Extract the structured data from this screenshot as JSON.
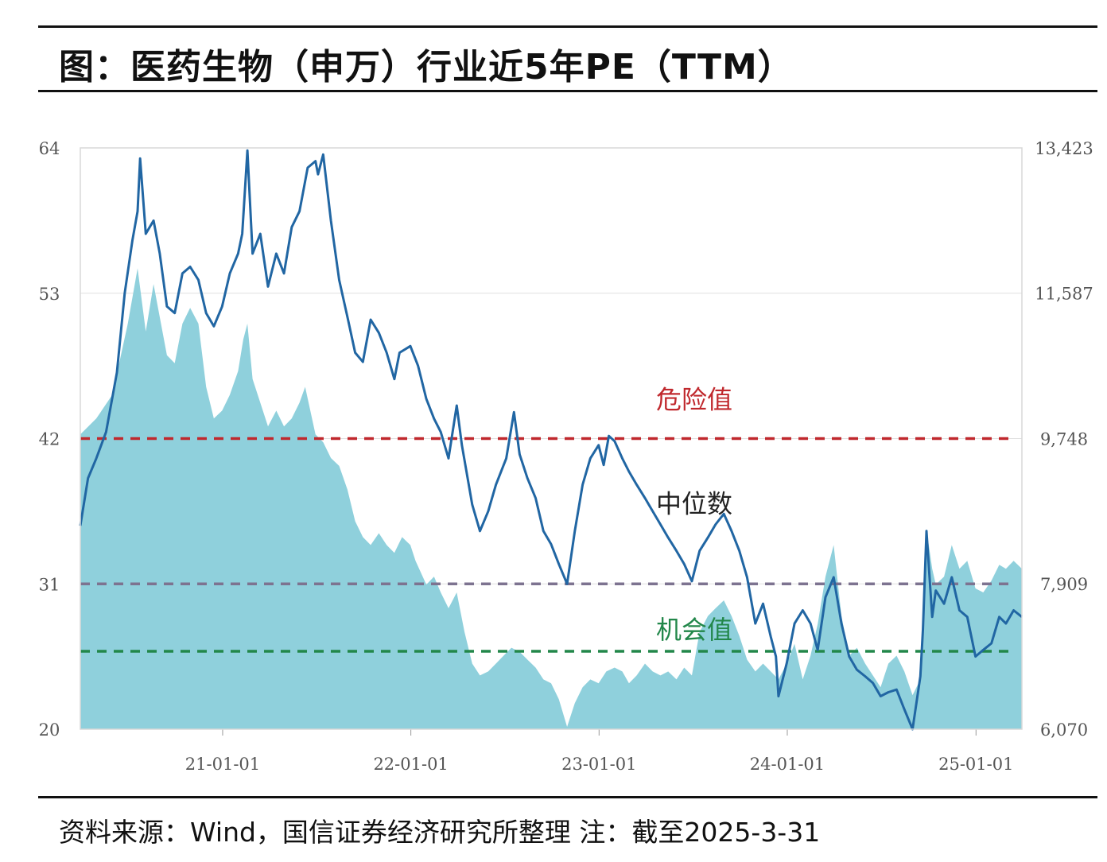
{
  "title": "图：医药生物（申万）行业近5年PE（TTM）",
  "source": "资料来源：Wind，国信证券经济研究所整理  注：截至2025-3-31",
  "colors": {
    "pe_line": "#2166a3",
    "index_area": "#8fd0dc",
    "danger": "#c0282d",
    "median": "#7d7390",
    "opportunity": "#22874a",
    "grid": "#e0e0e0",
    "plot_border": "#d8d8d8"
  },
  "chart_data": {
    "type": "line",
    "x_axis": {
      "type": "date",
      "range": [
        "2020-03-31",
        "2025-03-31"
      ],
      "ticks": [
        "2021-01-01",
        "2022-01-01",
        "2023-01-01",
        "2024-01-01",
        "2025-01-01"
      ],
      "tick_labels": [
        "21-01-01",
        "22-01-01",
        "23-01-01",
        "24-01-01",
        "25-01-01"
      ]
    },
    "y_left": {
      "ylim": [
        20,
        64
      ],
      "ticks": [
        20,
        31,
        42,
        53,
        64
      ],
      "tick_labels": [
        "20",
        "31",
        "42",
        "53",
        "64"
      ]
    },
    "y_right": {
      "ylim": [
        6070,
        13423
      ],
      "ticks": [
        6070,
        7909,
        9748,
        11587,
        13423
      ],
      "tick_labels": [
        "6,070",
        "7,909",
        "9,748",
        "11,587",
        "13,423"
      ]
    },
    "grid": true,
    "reference_lines": [
      {
        "label": "危险值",
        "value": 42,
        "style": "dashed"
      },
      {
        "label": "中位数",
        "value": 31,
        "style": "dashed"
      },
      {
        "label": "机会值",
        "value": 25.9,
        "style": "dashed"
      }
    ],
    "series": [
      {
        "axis": "left",
        "style": "line",
        "points": [
          [
            "2020-03-31",
            35.4
          ],
          [
            "2020-04-15",
            39.0
          ],
          [
            "2020-05-01",
            40.5
          ],
          [
            "2020-05-20",
            42.5
          ],
          [
            "2020-06-10",
            47.0
          ],
          [
            "2020-06-25",
            53.0
          ],
          [
            "2020-07-10",
            57.0
          ],
          [
            "2020-07-20",
            59.2
          ],
          [
            "2020-07-25",
            63.2
          ],
          [
            "2020-08-05",
            57.5
          ],
          [
            "2020-08-20",
            58.5
          ],
          [
            "2020-09-01",
            56.0
          ],
          [
            "2020-09-15",
            52.0
          ],
          [
            "2020-09-30",
            51.5
          ],
          [
            "2020-10-15",
            54.5
          ],
          [
            "2020-10-30",
            55.0
          ],
          [
            "2020-11-15",
            54.0
          ],
          [
            "2020-11-30",
            51.5
          ],
          [
            "2020-12-15",
            50.5
          ],
          [
            "2020-12-31",
            52.0
          ],
          [
            "2021-01-15",
            54.5
          ],
          [
            "2021-01-31",
            56.0
          ],
          [
            "2021-02-08",
            57.5
          ],
          [
            "2021-02-18",
            63.8
          ],
          [
            "2021-02-28",
            56.0
          ],
          [
            "2021-03-15",
            57.5
          ],
          [
            "2021-03-30",
            53.5
          ],
          [
            "2021-04-15",
            56.0
          ],
          [
            "2021-04-30",
            54.5
          ],
          [
            "2021-05-15",
            58.0
          ],
          [
            "2021-05-30",
            59.2
          ],
          [
            "2021-06-15",
            62.5
          ],
          [
            "2021-06-30",
            63.0
          ],
          [
            "2021-07-05",
            62.0
          ],
          [
            "2021-07-15",
            63.5
          ],
          [
            "2021-07-30",
            58.5
          ],
          [
            "2021-08-15",
            54.0
          ],
          [
            "2021-08-31",
            51.2
          ],
          [
            "2021-09-15",
            48.5
          ],
          [
            "2021-09-30",
            47.8
          ],
          [
            "2021-10-15",
            51.0
          ],
          [
            "2021-10-31",
            50.0
          ],
          [
            "2021-11-15",
            48.5
          ],
          [
            "2021-11-30",
            46.5
          ],
          [
            "2021-12-10",
            48.5
          ],
          [
            "2021-12-31",
            49.0
          ],
          [
            "2022-01-15",
            47.5
          ],
          [
            "2022-01-31",
            45.0
          ],
          [
            "2022-02-15",
            43.5
          ],
          [
            "2022-02-28",
            42.5
          ],
          [
            "2022-03-15",
            40.5
          ],
          [
            "2022-03-31",
            44.5
          ],
          [
            "2022-04-10",
            41.5
          ],
          [
            "2022-04-30",
            37.0
          ],
          [
            "2022-05-15",
            35.0
          ],
          [
            "2022-05-31",
            36.5
          ],
          [
            "2022-06-15",
            38.5
          ],
          [
            "2022-07-05",
            40.5
          ],
          [
            "2022-07-20",
            44.0
          ],
          [
            "2022-07-31",
            40.8
          ],
          [
            "2022-08-15",
            39.0
          ],
          [
            "2022-08-31",
            37.5
          ],
          [
            "2022-09-15",
            35.0
          ],
          [
            "2022-09-30",
            34.0
          ],
          [
            "2022-10-15",
            32.5
          ],
          [
            "2022-10-31",
            31.0
          ],
          [
            "2022-11-15",
            35.0
          ],
          [
            "2022-11-30",
            38.5
          ],
          [
            "2022-12-15",
            40.5
          ],
          [
            "2022-12-31",
            41.5
          ],
          [
            "2023-01-10",
            40.0
          ],
          [
            "2023-01-20",
            42.2
          ],
          [
            "2023-01-31",
            41.8
          ],
          [
            "2023-02-15",
            40.5
          ],
          [
            "2023-02-28",
            39.5
          ],
          [
            "2023-03-15",
            38.5
          ],
          [
            "2023-03-31",
            37.5
          ],
          [
            "2023-04-15",
            36.5
          ],
          [
            "2023-04-30",
            35.5
          ],
          [
            "2023-05-15",
            34.5
          ],
          [
            "2023-05-31",
            33.5
          ],
          [
            "2023-06-15",
            32.5
          ],
          [
            "2023-06-30",
            31.2
          ],
          [
            "2023-07-15",
            33.5
          ],
          [
            "2023-07-31",
            34.5
          ],
          [
            "2023-08-15",
            35.5
          ],
          [
            "2023-08-31",
            36.3
          ],
          [
            "2023-09-15",
            35.0
          ],
          [
            "2023-09-30",
            33.5
          ],
          [
            "2023-10-15",
            31.5
          ],
          [
            "2023-10-31",
            28.0
          ],
          [
            "2023-11-15",
            29.5
          ],
          [
            "2023-11-30",
            27.0
          ],
          [
            "2023-12-10",
            25.5
          ],
          [
            "2023-12-15",
            22.5
          ],
          [
            "2023-12-31",
            25.0
          ],
          [
            "2024-01-15",
            28.0
          ],
          [
            "2024-01-31",
            29.0
          ],
          [
            "2024-02-15",
            28.0
          ],
          [
            "2024-02-29",
            26.0
          ],
          [
            "2024-03-15",
            30.0
          ],
          [
            "2024-03-31",
            31.5
          ],
          [
            "2024-04-15",
            28.0
          ],
          [
            "2024-04-30",
            25.5
          ],
          [
            "2024-05-15",
            24.5
          ],
          [
            "2024-05-31",
            24.0
          ],
          [
            "2024-06-15",
            23.5
          ],
          [
            "2024-06-30",
            22.5
          ],
          [
            "2024-07-15",
            22.8
          ],
          [
            "2024-07-31",
            23.0
          ],
          [
            "2024-08-15",
            21.5
          ],
          [
            "2024-08-31",
            20.0
          ],
          [
            "2024-09-15",
            24.0
          ],
          [
            "2024-09-20",
            27.5
          ],
          [
            "2024-09-27",
            35.0
          ],
          [
            "2024-10-08",
            28.5
          ],
          [
            "2024-10-15",
            30.5
          ],
          [
            "2024-10-31",
            29.5
          ],
          [
            "2024-11-15",
            31.5
          ],
          [
            "2024-11-30",
            29.0
          ],
          [
            "2024-12-15",
            28.5
          ],
          [
            "2024-12-31",
            25.5
          ],
          [
            "2025-01-15",
            26.0
          ],
          [
            "2025-01-31",
            26.5
          ],
          [
            "2025-02-15",
            28.5
          ],
          [
            "2025-02-28",
            28.0
          ],
          [
            "2025-03-15",
            29.0
          ],
          [
            "2025-03-31",
            28.5
          ]
        ]
      },
      {
        "axis": "right",
        "style": "area",
        "points": [
          [
            "2020-03-31",
            9800
          ],
          [
            "2020-05-01",
            10000
          ],
          [
            "2020-06-01",
            10300
          ],
          [
            "2020-07-01",
            11200
          ],
          [
            "2020-07-20",
            11900
          ],
          [
            "2020-08-05",
            11100
          ],
          [
            "2020-08-20",
            11700
          ],
          [
            "2020-09-15",
            10800
          ],
          [
            "2020-09-30",
            10700
          ],
          [
            "2020-10-15",
            11200
          ],
          [
            "2020-10-30",
            11400
          ],
          [
            "2020-11-15",
            11200
          ],
          [
            "2020-11-30",
            10400
          ],
          [
            "2020-12-15",
            10000
          ],
          [
            "2020-12-31",
            10100
          ],
          [
            "2021-01-15",
            10300
          ],
          [
            "2021-01-31",
            10600
          ],
          [
            "2021-02-10",
            11000
          ],
          [
            "2021-02-18",
            11200
          ],
          [
            "2021-02-28",
            10500
          ],
          [
            "2021-03-15",
            10200
          ],
          [
            "2021-03-30",
            9900
          ],
          [
            "2021-04-15",
            10100
          ],
          [
            "2021-04-30",
            9900
          ],
          [
            "2021-05-15",
            10000
          ],
          [
            "2021-05-30",
            10200
          ],
          [
            "2021-06-10",
            10400
          ],
          [
            "2021-06-30",
            9800
          ],
          [
            "2021-07-15",
            9700
          ],
          [
            "2021-07-30",
            9500
          ],
          [
            "2021-08-15",
            9400
          ],
          [
            "2021-08-31",
            9100
          ],
          [
            "2021-09-15",
            8700
          ],
          [
            "2021-09-30",
            8500
          ],
          [
            "2021-10-15",
            8400
          ],
          [
            "2021-10-31",
            8550
          ],
          [
            "2021-11-15",
            8400
          ],
          [
            "2021-11-30",
            8300
          ],
          [
            "2021-12-15",
            8500
          ],
          [
            "2021-12-31",
            8400
          ],
          [
            "2022-01-10",
            8200
          ],
          [
            "2022-01-31",
            7900
          ],
          [
            "2022-02-15",
            8000
          ],
          [
            "2022-02-28",
            7800
          ],
          [
            "2022-03-15",
            7600
          ],
          [
            "2022-03-31",
            7800
          ],
          [
            "2022-04-15",
            7300
          ],
          [
            "2022-04-30",
            6900
          ],
          [
            "2022-05-15",
            6750
          ],
          [
            "2022-05-31",
            6800
          ],
          [
            "2022-06-15",
            6900
          ],
          [
            "2022-06-30",
            7000
          ],
          [
            "2022-07-15",
            7100
          ],
          [
            "2022-07-31",
            7050
          ],
          [
            "2022-08-15",
            6950
          ],
          [
            "2022-08-31",
            6850
          ],
          [
            "2022-09-15",
            6700
          ],
          [
            "2022-09-30",
            6650
          ],
          [
            "2022-10-15",
            6450
          ],
          [
            "2022-10-31",
            6100
          ],
          [
            "2022-11-15",
            6400
          ],
          [
            "2022-11-30",
            6600
          ],
          [
            "2022-12-15",
            6700
          ],
          [
            "2022-12-31",
            6650
          ],
          [
            "2023-01-15",
            6800
          ],
          [
            "2023-01-31",
            6850
          ],
          [
            "2023-02-15",
            6800
          ],
          [
            "2023-02-28",
            6650
          ],
          [
            "2023-03-15",
            6750
          ],
          [
            "2023-03-31",
            6900
          ],
          [
            "2023-04-15",
            6800
          ],
          [
            "2023-04-30",
            6750
          ],
          [
            "2023-05-15",
            6800
          ],
          [
            "2023-05-31",
            6700
          ],
          [
            "2023-06-15",
            6850
          ],
          [
            "2023-06-30",
            6750
          ],
          [
            "2023-07-15",
            7300
          ],
          [
            "2023-07-31",
            7500
          ],
          [
            "2023-08-15",
            7600
          ],
          [
            "2023-08-31",
            7700
          ],
          [
            "2023-09-15",
            7500
          ],
          [
            "2023-09-30",
            7250
          ],
          [
            "2023-10-15",
            6950
          ],
          [
            "2023-10-31",
            6800
          ],
          [
            "2023-11-15",
            6900
          ],
          [
            "2023-11-30",
            6800
          ],
          [
            "2023-12-15",
            6700
          ],
          [
            "2023-12-31",
            6900
          ],
          [
            "2024-01-15",
            7150
          ],
          [
            "2024-01-31",
            6700
          ],
          [
            "2024-02-15",
            7000
          ],
          [
            "2024-02-29",
            7400
          ],
          [
            "2024-03-15",
            8000
          ],
          [
            "2024-03-31",
            8400
          ],
          [
            "2024-04-15",
            7500
          ],
          [
            "2024-04-30",
            7000
          ],
          [
            "2024-05-15",
            7100
          ],
          [
            "2024-05-31",
            6900
          ],
          [
            "2024-06-15",
            6750
          ],
          [
            "2024-06-30",
            6600
          ],
          [
            "2024-07-15",
            6900
          ],
          [
            "2024-07-31",
            7000
          ],
          [
            "2024-08-15",
            6800
          ],
          [
            "2024-08-31",
            6500
          ],
          [
            "2024-09-15",
            6700
          ],
          [
            "2024-09-20",
            7200
          ],
          [
            "2024-09-27",
            8600
          ],
          [
            "2024-10-08",
            8100
          ],
          [
            "2024-10-15",
            7900
          ],
          [
            "2024-10-31",
            8000
          ],
          [
            "2024-11-15",
            8400
          ],
          [
            "2024-11-30",
            8100
          ],
          [
            "2024-12-15",
            8200
          ],
          [
            "2024-12-31",
            7850
          ],
          [
            "2025-01-15",
            7800
          ],
          [
            "2025-01-31",
            7950
          ],
          [
            "2025-02-15",
            8150
          ],
          [
            "2025-02-28",
            8100
          ],
          [
            "2025-03-15",
            8200
          ],
          [
            "2025-03-31",
            8100
          ]
        ]
      }
    ]
  }
}
